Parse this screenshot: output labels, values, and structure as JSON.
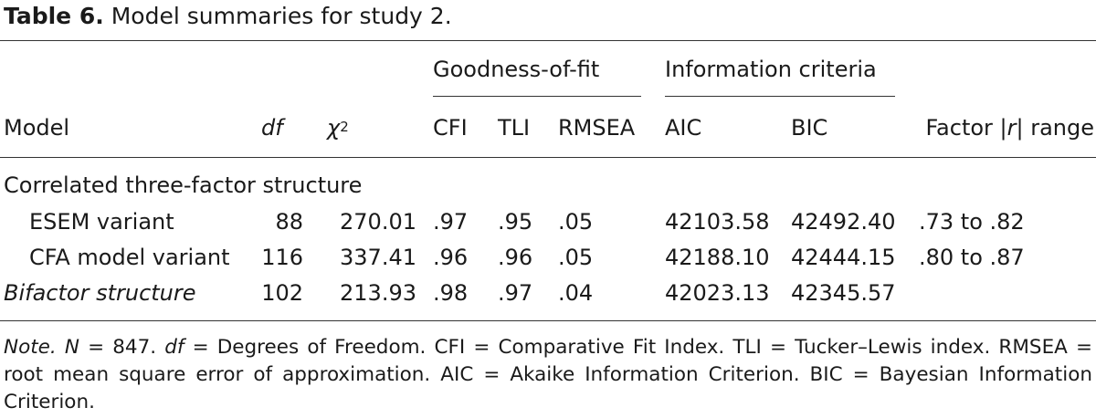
{
  "caption": {
    "label": "Table 6.",
    "text": "Model summaries for study 2."
  },
  "table": {
    "group_headers": {
      "goodness": "Goodness-of-fit",
      "info": "Information criteria"
    },
    "columns": {
      "model": "Model",
      "df": "df",
      "chi_symbol": "χ",
      "chi_exp": "2",
      "cfi": "CFI",
      "tli": "TLI",
      "rmsea": "RMSEA",
      "aic": "AIC",
      "bic": "BIC",
      "range_pre": "Factor |",
      "range_r": "r",
      "range_post": "| range"
    },
    "section_label": "Correlated three-factor structure",
    "rows": [
      {
        "model": "ESEM variant",
        "df": "88",
        "chi2": "270.01",
        "cfi": ".97",
        "tli": ".95",
        "rmsea": ".05",
        "aic": "42103.58",
        "bic": "42492.40",
        "range": ".73 to .82"
      },
      {
        "model": "CFA model variant",
        "df": "116",
        "chi2": "337.41",
        "cfi": ".96",
        "tli": ".96",
        "rmsea": ".05",
        "aic": "42188.10",
        "bic": "42444.15",
        "range": ".80 to .87"
      },
      {
        "model": "Bifactor structure",
        "df": "102",
        "chi2": "213.93",
        "cfi": ".98",
        "tli": ".97",
        "rmsea": ".04",
        "aic": "42023.13",
        "bic": "42345.57",
        "range": ""
      }
    ]
  },
  "note": {
    "label": "Note.",
    "n_symbol": "N",
    "n_value": " = 847. ",
    "df_symbol": "df",
    "rest": " = Degrees of Freedom. CFI = Comparative Fit Index. TLI = Tucker–Lewis index. RMSEA = root mean square error of approximation. AIC = Akaike Information Criterion. BIC = Bayesian Information Criterion."
  }
}
